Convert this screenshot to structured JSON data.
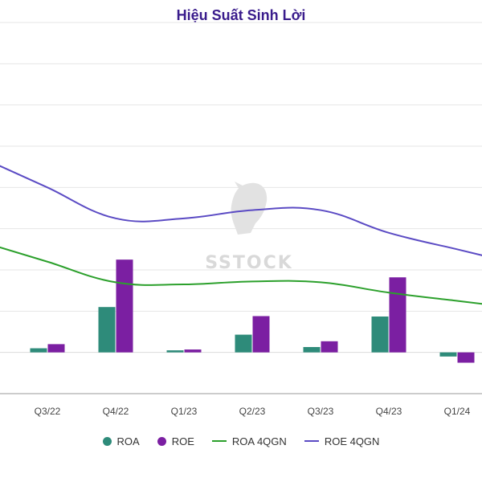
{
  "title": "Hiệu Suất Sinh Lời",
  "watermark": "SSTOCK",
  "colors": {
    "title": "#3a1c8c",
    "roa": "#2e8b7a",
    "roe": "#7b1fa2",
    "roa_4q": "#2ca02c",
    "roe_4q": "#5b4bc4",
    "grid": "#e6e6e6",
    "axis": "#999999"
  },
  "legend": [
    {
      "label": "ROA",
      "marker": "dot",
      "color": "#2e8b7a"
    },
    {
      "label": "ROE",
      "marker": "dot",
      "color": "#7b1fa2"
    },
    {
      "label": "ROA 4QGN",
      "marker": "line",
      "color": "#2ca02c"
    },
    {
      "label": "ROE 4QGN",
      "marker": "line",
      "color": "#5b4bc4"
    }
  ],
  "chart_data": {
    "type": "bar",
    "title": "Hiệu Suất Sinh Lời",
    "categories": [
      "Q3/22",
      "Q4/22",
      "Q1/23",
      "Q2/23",
      "Q3/23",
      "Q4/23",
      "Q1/24"
    ],
    "ylim": [
      -1,
      8
    ],
    "grid": true,
    "legend_position": "bottom",
    "series": [
      {
        "name": "ROA",
        "type": "bar",
        "values": [
          0.1,
          1.1,
          0.05,
          0.43,
          0.13,
          0.87,
          -0.1
        ]
      },
      {
        "name": "ROE",
        "type": "bar",
        "values": [
          0.2,
          2.25,
          0.07,
          0.88,
          0.27,
          1.82,
          -0.25
        ]
      },
      {
        "name": "ROA 4QGN",
        "type": "line",
        "values": [
          2.2,
          1.7,
          1.65,
          1.72,
          1.7,
          1.45,
          1.25
        ]
      },
      {
        "name": "ROE 4QGN",
        "type": "line",
        "values": [
          4.0,
          3.25,
          3.25,
          3.45,
          3.45,
          2.9,
          2.5
        ]
      }
    ]
  }
}
